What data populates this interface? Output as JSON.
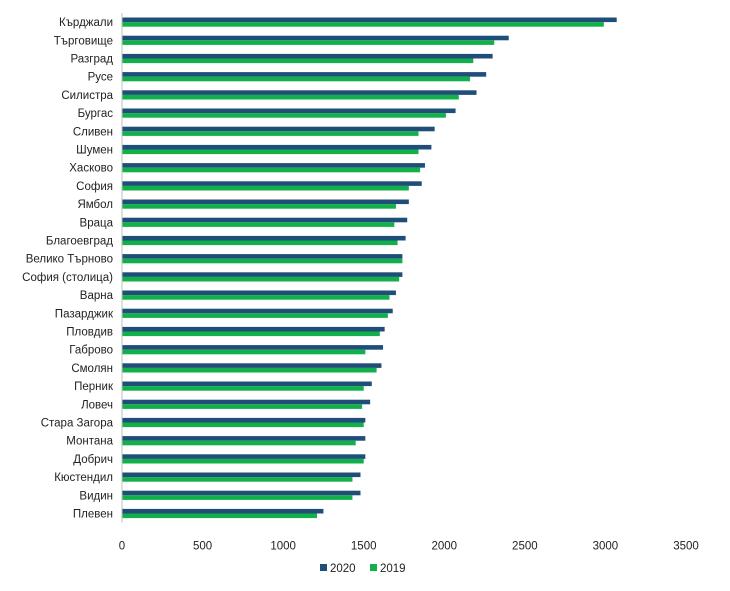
{
  "chart_data": {
    "type": "bar",
    "orientation": "horizontal",
    "categories": [
      "Кърджали",
      "Търговище",
      "Разград",
      "Русе",
      "Силистра",
      "Бургас",
      "Сливен",
      "Шумен",
      "Хасково",
      "София",
      "Ямбол",
      "Враца",
      "Благоевград",
      "Велико Търново",
      "София (столица)",
      "Варна",
      "Пазарджик",
      "Пловдив",
      "Габрово",
      "Смолян",
      "Перник",
      "Ловеч",
      "Стара Загора",
      "Монтана",
      "Добрич",
      "Кюстендил",
      "Видин",
      "Плевен"
    ],
    "series": [
      {
        "name": "2020",
        "color": "#1f4e79",
        "values": [
          3070,
          2400,
          2300,
          2260,
          2200,
          2070,
          1940,
          1920,
          1880,
          1860,
          1780,
          1770,
          1760,
          1740,
          1740,
          1700,
          1680,
          1630,
          1620,
          1610,
          1550,
          1540,
          1510,
          1510,
          1510,
          1480,
          1480,
          1250
        ]
      },
      {
        "name": "2019",
        "color": "#12b04a",
        "values": [
          2990,
          2310,
          2180,
          2160,
          2090,
          2010,
          1840,
          1840,
          1850,
          1780,
          1700,
          1690,
          1710,
          1740,
          1720,
          1660,
          1650,
          1600,
          1510,
          1580,
          1500,
          1490,
          1500,
          1450,
          1500,
          1430,
          1430,
          1210
        ]
      }
    ],
    "xticks": [
      "0",
      "500",
      "1000",
      "1500",
      "2000",
      "2500",
      "3000",
      "3500"
    ],
    "xlim": [
      0,
      3500
    ],
    "legend_position": "bottom-center",
    "grid": false
  }
}
